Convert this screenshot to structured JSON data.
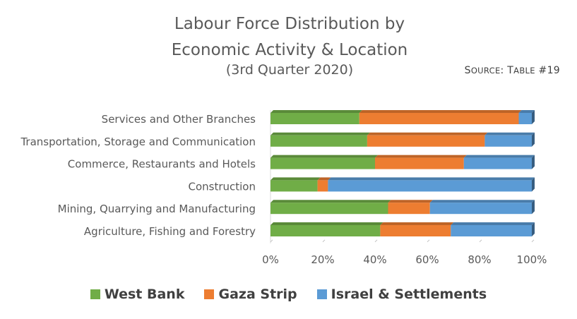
{
  "chart_data": {
    "type": "bar",
    "orientation": "horizontal",
    "stacked": "percent",
    "title_lines": [
      "Labour Force Distribution by",
      "Economic Activity & Location"
    ],
    "subtitle": "(3rd Quarter 2020)",
    "source": {
      "prefix": "S",
      "rest": "ource",
      "sep": ": ",
      "prefix2": "T",
      "rest2": "able",
      "num": " #19"
    },
    "categories": [
      "Services and Other Branches",
      "Transportation, Storage and Communication",
      "Commerce, Restaurants and Hotels",
      "Construction",
      "Mining, Quarrying and Manufacturing",
      "Agriculture, Fishing and Forestry"
    ],
    "series": [
      {
        "name": "West Bank",
        "color": "#70AD47",
        "values": [
          34,
          37,
          40,
          18,
          45,
          42
        ]
      },
      {
        "name": "Gaza Strip",
        "color": "#ED7D31",
        "values": [
          61,
          45,
          34,
          4,
          16,
          27
        ]
      },
      {
        "name": "Israel & Settlements",
        "color": "#5B9BD5",
        "values": [
          5,
          18,
          26,
          78,
          39,
          31
        ]
      }
    ],
    "x_ticks": [
      "0%",
      "20%",
      "40%",
      "60%",
      "80%",
      "100%"
    ],
    "xlim": [
      0,
      100
    ],
    "grid": false,
    "legend_position": "bottom"
  }
}
